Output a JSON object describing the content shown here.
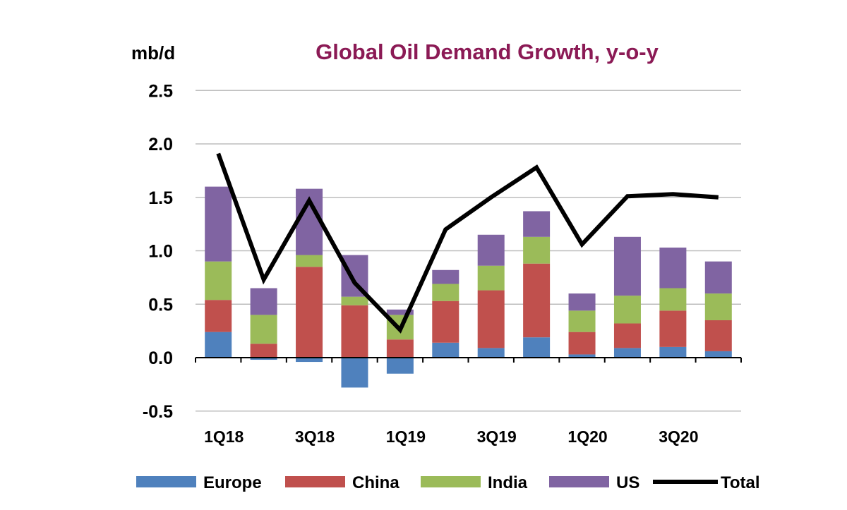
{
  "chart_data": {
    "type": "bar",
    "stacked": true,
    "title": "Global Oil Demand Growth, y-o-y",
    "ylabel": "mb/d",
    "xlabel": "",
    "ylim": [
      -0.5,
      2.5
    ],
    "yticks": [
      "2.5",
      "2.0",
      "1.5",
      "1.0",
      "0.5",
      "0.0",
      "-0.5"
    ],
    "ytick_values": [
      2.5,
      2.0,
      1.5,
      1.0,
      0.5,
      0.0,
      -0.5
    ],
    "grid": true,
    "legend_position": "bottom",
    "categories": [
      "1Q18",
      "",
      "3Q18",
      "",
      "1Q19",
      "",
      "3Q19",
      "",
      "1Q20",
      "",
      "3Q20",
      ""
    ],
    "series": [
      {
        "name": "Europe",
        "color": "#4f81bd",
        "values": [
          0.24,
          -0.02,
          -0.04,
          -0.28,
          -0.15,
          0.14,
          0.09,
          0.19,
          0.03,
          0.09,
          0.1,
          0.06
        ]
      },
      {
        "name": "China",
        "color": "#c0504d",
        "values": [
          0.3,
          0.13,
          0.85,
          0.49,
          0.17,
          0.39,
          0.54,
          0.69,
          0.21,
          0.23,
          0.34,
          0.29
        ]
      },
      {
        "name": "India",
        "color": "#9bbb59",
        "values": [
          0.36,
          0.27,
          0.11,
          0.08,
          0.23,
          0.16,
          0.23,
          0.25,
          0.2,
          0.26,
          0.21,
          0.25
        ]
      },
      {
        "name": "US",
        "color": "#8064a2",
        "values": [
          0.7,
          0.25,
          0.62,
          0.39,
          0.05,
          0.13,
          0.29,
          0.24,
          0.16,
          0.55,
          0.38,
          0.3
        ]
      }
    ],
    "line": {
      "name": "Total",
      "color": "#000000",
      "values": [
        1.91,
        0.73,
        1.47,
        0.7,
        0.26,
        1.2,
        1.5,
        1.78,
        1.06,
        1.51,
        1.53,
        1.5
      ]
    },
    "title_color": "#8b1a55"
  }
}
